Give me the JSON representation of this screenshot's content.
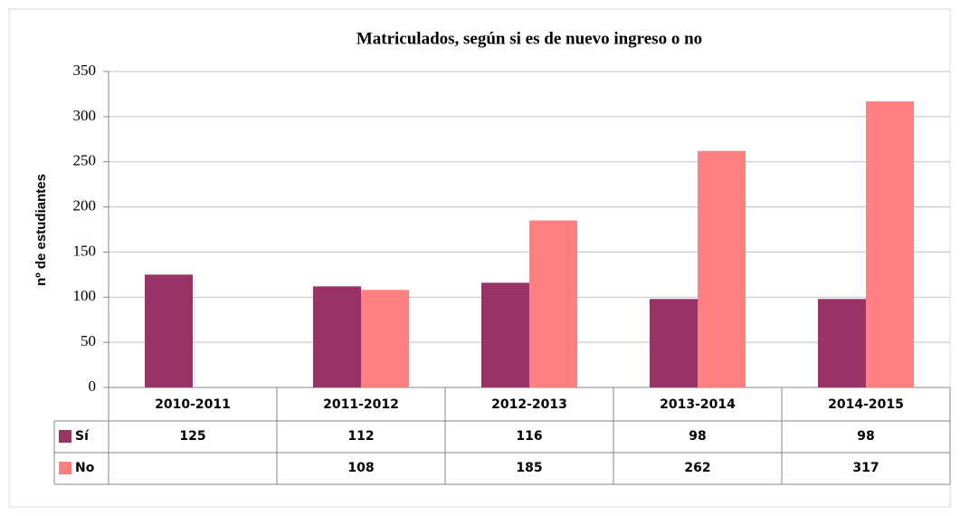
{
  "chart_data": {
    "type": "bar",
    "title": "Matriculados, según si es de nuevo ingreso o no",
    "y_label": "nº de estudiantes",
    "categories": [
      "2010-2011",
      "2011-2012",
      "2012-2013",
      "2013-2014",
      "2014-2015"
    ],
    "series": [
      {
        "name": "Sí",
        "color": "#993366",
        "values": [
          125,
          112,
          116,
          98,
          98
        ]
      },
      {
        "name": "No",
        "color": "#ff8080",
        "values": [
          null,
          108,
          185,
          262,
          317
        ]
      }
    ],
    "ylim": [
      0,
      350
    ],
    "yticks": [
      0,
      50,
      100,
      150,
      200,
      250,
      300,
      350
    ],
    "grid": true
  }
}
